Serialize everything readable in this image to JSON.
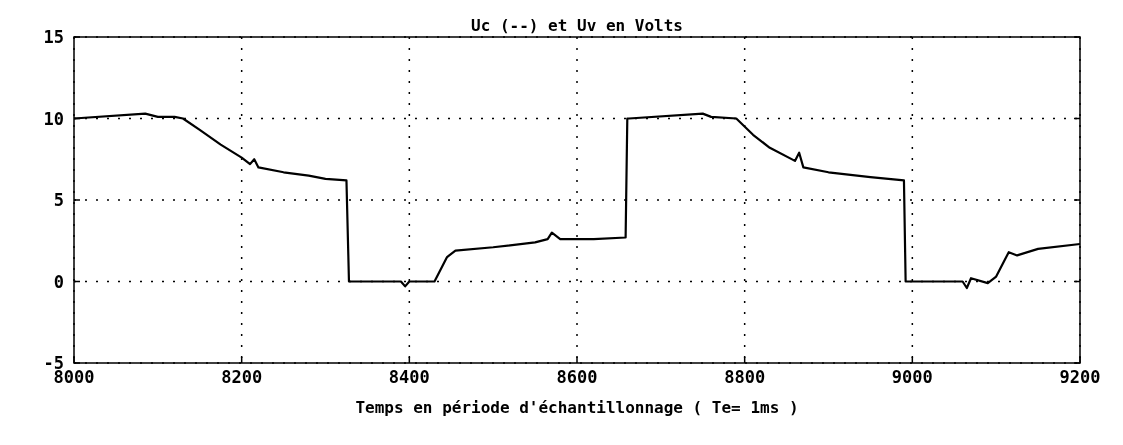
{
  "chart_data": {
    "type": "line",
    "title": "Uc (--) et Uv en Volts",
    "xlabel": "Temps en période d'échantillonnage ( Te=  1ms )",
    "series": [
      {
        "color": "#000000",
        "x": [
          8000,
          8085,
          8100,
          8120,
          8130,
          8150,
          8175,
          8200,
          8210,
          8215,
          8220,
          8250,
          8280,
          8300,
          8325,
          8328,
          8390,
          8395,
          8400,
          8430,
          8445,
          8455,
          8500,
          8550,
          8565,
          8570,
          8580,
          8620,
          8658,
          8660,
          8662,
          8750,
          8760,
          8790,
          8810,
          8830,
          8860,
          8865,
          8870,
          8900,
          8950,
          8990,
          8992,
          9060,
          9065,
          9070,
          9090,
          9100,
          9115,
          9125,
          9150,
          9200
        ],
        "values": [
          10,
          10.3,
          10.1,
          10.1,
          10,
          9.3,
          8.4,
          7.6,
          7.2,
          7.5,
          7.0,
          6.7,
          6.5,
          6.3,
          6.2,
          0,
          0,
          -0.3,
          0,
          0,
          1.5,
          1.9,
          2.1,
          2.4,
          2.6,
          3.0,
          2.6,
          2.6,
          2.7,
          10,
          10,
          10.3,
          10.1,
          10,
          9.0,
          8.2,
          7.4,
          7.9,
          7.0,
          6.7,
          6.4,
          6.2,
          0,
          0,
          -0.4,
          0.2,
          -0.1,
          0.3,
          1.8,
          1.6,
          2.0,
          2.3
        ]
      }
    ],
    "xlim": [
      8000,
      9200
    ],
    "xticks": [
      8000,
      8200,
      8400,
      8600,
      8800,
      9000,
      9200
    ],
    "ylim": [
      -5,
      15
    ],
    "yticks": [
      -5,
      0,
      5,
      10,
      15
    ],
    "grid": true,
    "line_style": "solid",
    "marker": "none"
  }
}
